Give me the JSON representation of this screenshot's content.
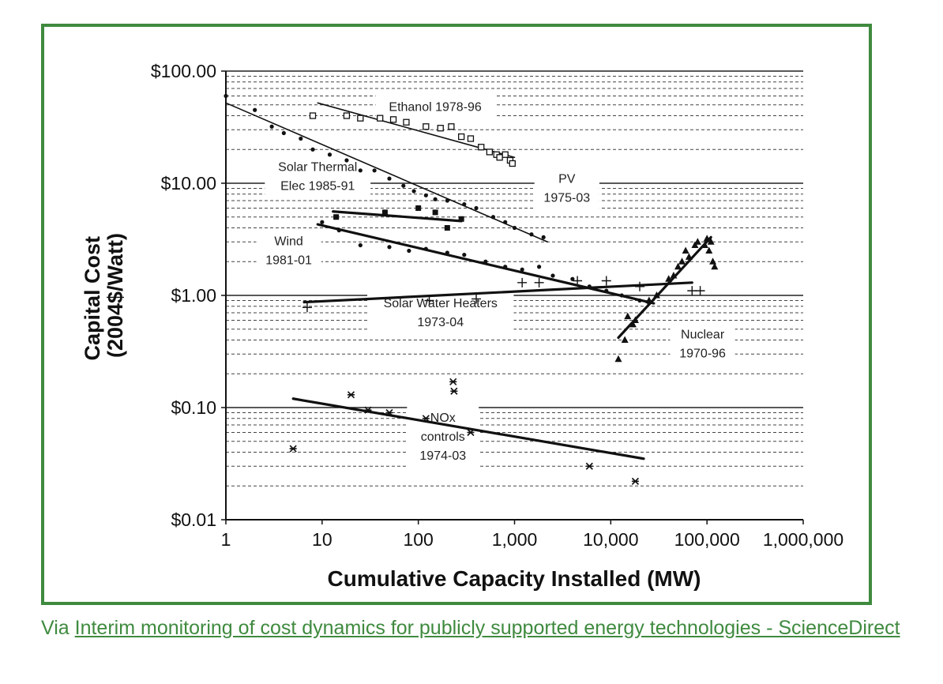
{
  "chart_data": {
    "type": "scatter",
    "title": "",
    "xlabel": "Cumulative Capacity Installed (MW)",
    "ylabel": "Capital Cost (2004$/Watt)",
    "ylabel_lines": [
      "Capital Cost",
      "(2004$/Watt)"
    ],
    "x_scale": "log",
    "y_scale": "log",
    "xlim": [
      1,
      1000000
    ],
    "ylim": [
      0.01,
      100
    ],
    "grid": "dashed minor horizontal gridlines, solid at decades",
    "x_tick_labels": [
      {
        "value": 1,
        "label": "1"
      },
      {
        "value": 10,
        "label": "10"
      },
      {
        "value": 100,
        "label": "100"
      },
      {
        "value": 1000,
        "label": "1,000"
      },
      {
        "value": 10000,
        "label": "10,000"
      },
      {
        "value": 100000,
        "label": "100,000"
      },
      {
        "value": 1000000,
        "label": "1,000,000"
      }
    ],
    "y_tick_labels": [
      {
        "value": 100,
        "label": "$100.00"
      },
      {
        "value": 10,
        "label": "$10.00"
      },
      {
        "value": 1,
        "label": "$1.00"
      },
      {
        "value": 0.1,
        "label": "$0.10"
      },
      {
        "value": 0.01,
        "label": "$0.01"
      }
    ],
    "series": [
      {
        "name": "Ethanol 1978-96",
        "label_lines": [
          "Ethanol 1978-96"
        ],
        "label_at": [
          150,
          48
        ],
        "marker": "open-square",
        "points": [
          [
            8,
            40
          ],
          [
            18,
            40
          ],
          [
            25,
            38
          ],
          [
            40,
            38
          ],
          [
            55,
            37
          ],
          [
            75,
            35
          ],
          [
            120,
            32
          ],
          [
            170,
            31
          ],
          [
            220,
            32
          ],
          [
            280,
            26
          ],
          [
            350,
            25
          ],
          [
            450,
            21
          ],
          [
            550,
            19
          ],
          [
            650,
            18
          ],
          [
            700,
            17
          ],
          [
            800,
            18
          ],
          [
            900,
            16
          ],
          [
            950,
            15
          ]
        ],
        "fit": [
          [
            9,
            52
          ],
          [
            1000,
            17
          ]
        ]
      },
      {
        "name": "PV 1975-03",
        "label_lines": [
          "PV",
          "1975-03"
        ],
        "label_at": [
          3500,
          9.0
        ],
        "marker": "dot",
        "points": [
          [
            1,
            60
          ],
          [
            2,
            45
          ],
          [
            3,
            32
          ],
          [
            4,
            28
          ],
          [
            6,
            25
          ],
          [
            8,
            20
          ],
          [
            12,
            18
          ],
          [
            18,
            16
          ],
          [
            25,
            13
          ],
          [
            35,
            13
          ],
          [
            50,
            11
          ],
          [
            70,
            9.5
          ],
          [
            90,
            8.5
          ],
          [
            120,
            7.8
          ],
          [
            150,
            7.2
          ],
          [
            200,
            7.0
          ],
          [
            300,
            6.5
          ],
          [
            400,
            6.0
          ],
          [
            600,
            5.0
          ],
          [
            800,
            4.5
          ],
          [
            1000,
            4.0
          ],
          [
            1500,
            3.5
          ],
          [
            2000,
            3.3
          ]
        ],
        "fit": [
          [
            1,
            52
          ],
          [
            2200,
            3.0
          ]
        ]
      },
      {
        "name": "Solar Thermal Elec 1985-91",
        "label_lines": [
          "Solar Thermal",
          "Elec 1985-91"
        ],
        "label_at": [
          9,
          11.5
        ],
        "marker": "filled-square",
        "points": [
          [
            14,
            5.0
          ],
          [
            45,
            5.5
          ],
          [
            100,
            6.0
          ],
          [
            150,
            5.5
          ],
          [
            200,
            4.0
          ],
          [
            280,
            4.8
          ]
        ],
        "fit": [
          [
            13,
            5.6
          ],
          [
            280,
            4.6
          ]
        ]
      },
      {
        "name": "Wind 1981-01",
        "label_lines": [
          "Wind",
          "1981-01"
        ],
        "label_at": [
          4.5,
          2.5
        ],
        "marker": "dot",
        "points": [
          [
            10,
            4.5
          ],
          [
            15,
            3.8
          ],
          [
            25,
            2.8
          ],
          [
            50,
            2.7
          ],
          [
            80,
            2.5
          ],
          [
            120,
            2.6
          ],
          [
            200,
            2.4
          ],
          [
            300,
            2.3
          ],
          [
            500,
            2.0
          ],
          [
            800,
            1.8
          ],
          [
            1200,
            1.7
          ],
          [
            1800,
            1.8
          ],
          [
            2500,
            1.5
          ],
          [
            4000,
            1.4
          ],
          [
            6000,
            1.2
          ],
          [
            9000,
            1.1
          ],
          [
            13000,
            1.0
          ],
          [
            20000,
            0.9
          ],
          [
            25000,
            0.85
          ]
        ],
        "fit": [
          [
            9,
            4.3
          ],
          [
            28000,
            0.85
          ]
        ]
      },
      {
        "name": "Solar Water Heaters 1973-04",
        "label_lines": [
          "Solar Water Heaters",
          "1973-04"
        ],
        "label_at": [
          170,
          0.7
        ],
        "marker": "plus",
        "points": [
          [
            7,
            0.78
          ],
          [
            130,
            0.9
          ],
          [
            400,
            0.93
          ],
          [
            1200,
            1.3
          ],
          [
            1800,
            1.3
          ],
          [
            4500,
            1.35
          ],
          [
            9000,
            1.35
          ],
          [
            20000,
            1.2
          ],
          [
            70000,
            1.1
          ],
          [
            85000,
            1.1
          ]
        ],
        "fit": [
          [
            6.5,
            0.87
          ],
          [
            70000,
            1.3
          ]
        ]
      },
      {
        "name": "Nuclear 1970-96",
        "label_lines": [
          "Nuclear",
          "1970-96"
        ],
        "label_at": [
          90000,
          0.37
        ],
        "marker": "triangle",
        "points": [
          [
            12000,
            0.27
          ],
          [
            14000,
            0.4
          ],
          [
            15000,
            0.65
          ],
          [
            17000,
            0.55
          ],
          [
            18000,
            0.6
          ],
          [
            25000,
            0.9
          ],
          [
            30000,
            1.0
          ],
          [
            40000,
            1.4
          ],
          [
            45000,
            1.5
          ],
          [
            50000,
            1.8
          ],
          [
            55000,
            2.0
          ],
          [
            60000,
            2.5
          ],
          [
            65000,
            2.2
          ],
          [
            75000,
            2.8
          ],
          [
            80000,
            3.0
          ],
          [
            95000,
            2.8
          ],
          [
            100000,
            3.2
          ],
          [
            105000,
            2.5
          ],
          [
            110000,
            3.0
          ],
          [
            115000,
            2.0
          ],
          [
            120000,
            1.8
          ]
        ],
        "fit": [
          [
            12000,
            0.42
          ],
          [
            110000,
            3.3
          ]
        ]
      },
      {
        "name": "NOx controls 1974-03",
        "label_lines": [
          "NOx",
          "controls",
          "1974-03"
        ],
        "label_at": [
          180,
          0.055
        ],
        "marker": "asterisk",
        "points": [
          [
            5,
            0.043
          ],
          [
            20,
            0.13
          ],
          [
            30,
            0.095
          ],
          [
            50,
            0.09
          ],
          [
            120,
            0.08
          ],
          [
            230,
            0.17
          ],
          [
            235,
            0.14
          ],
          [
            350,
            0.06
          ],
          [
            6000,
            0.03
          ],
          [
            18000,
            0.022
          ]
        ],
        "fit": [
          [
            5,
            0.12
          ],
          [
            22000,
            0.035
          ]
        ]
      }
    ]
  },
  "caption": {
    "prefix": "Via ",
    "link_text": "Interim monitoring of cost dynamics for publicly supported energy technologies - ScienceDirect"
  },
  "colors": {
    "frame": "#3f8a3f",
    "caption": "#3f8a3f",
    "ink": "#111111"
  }
}
